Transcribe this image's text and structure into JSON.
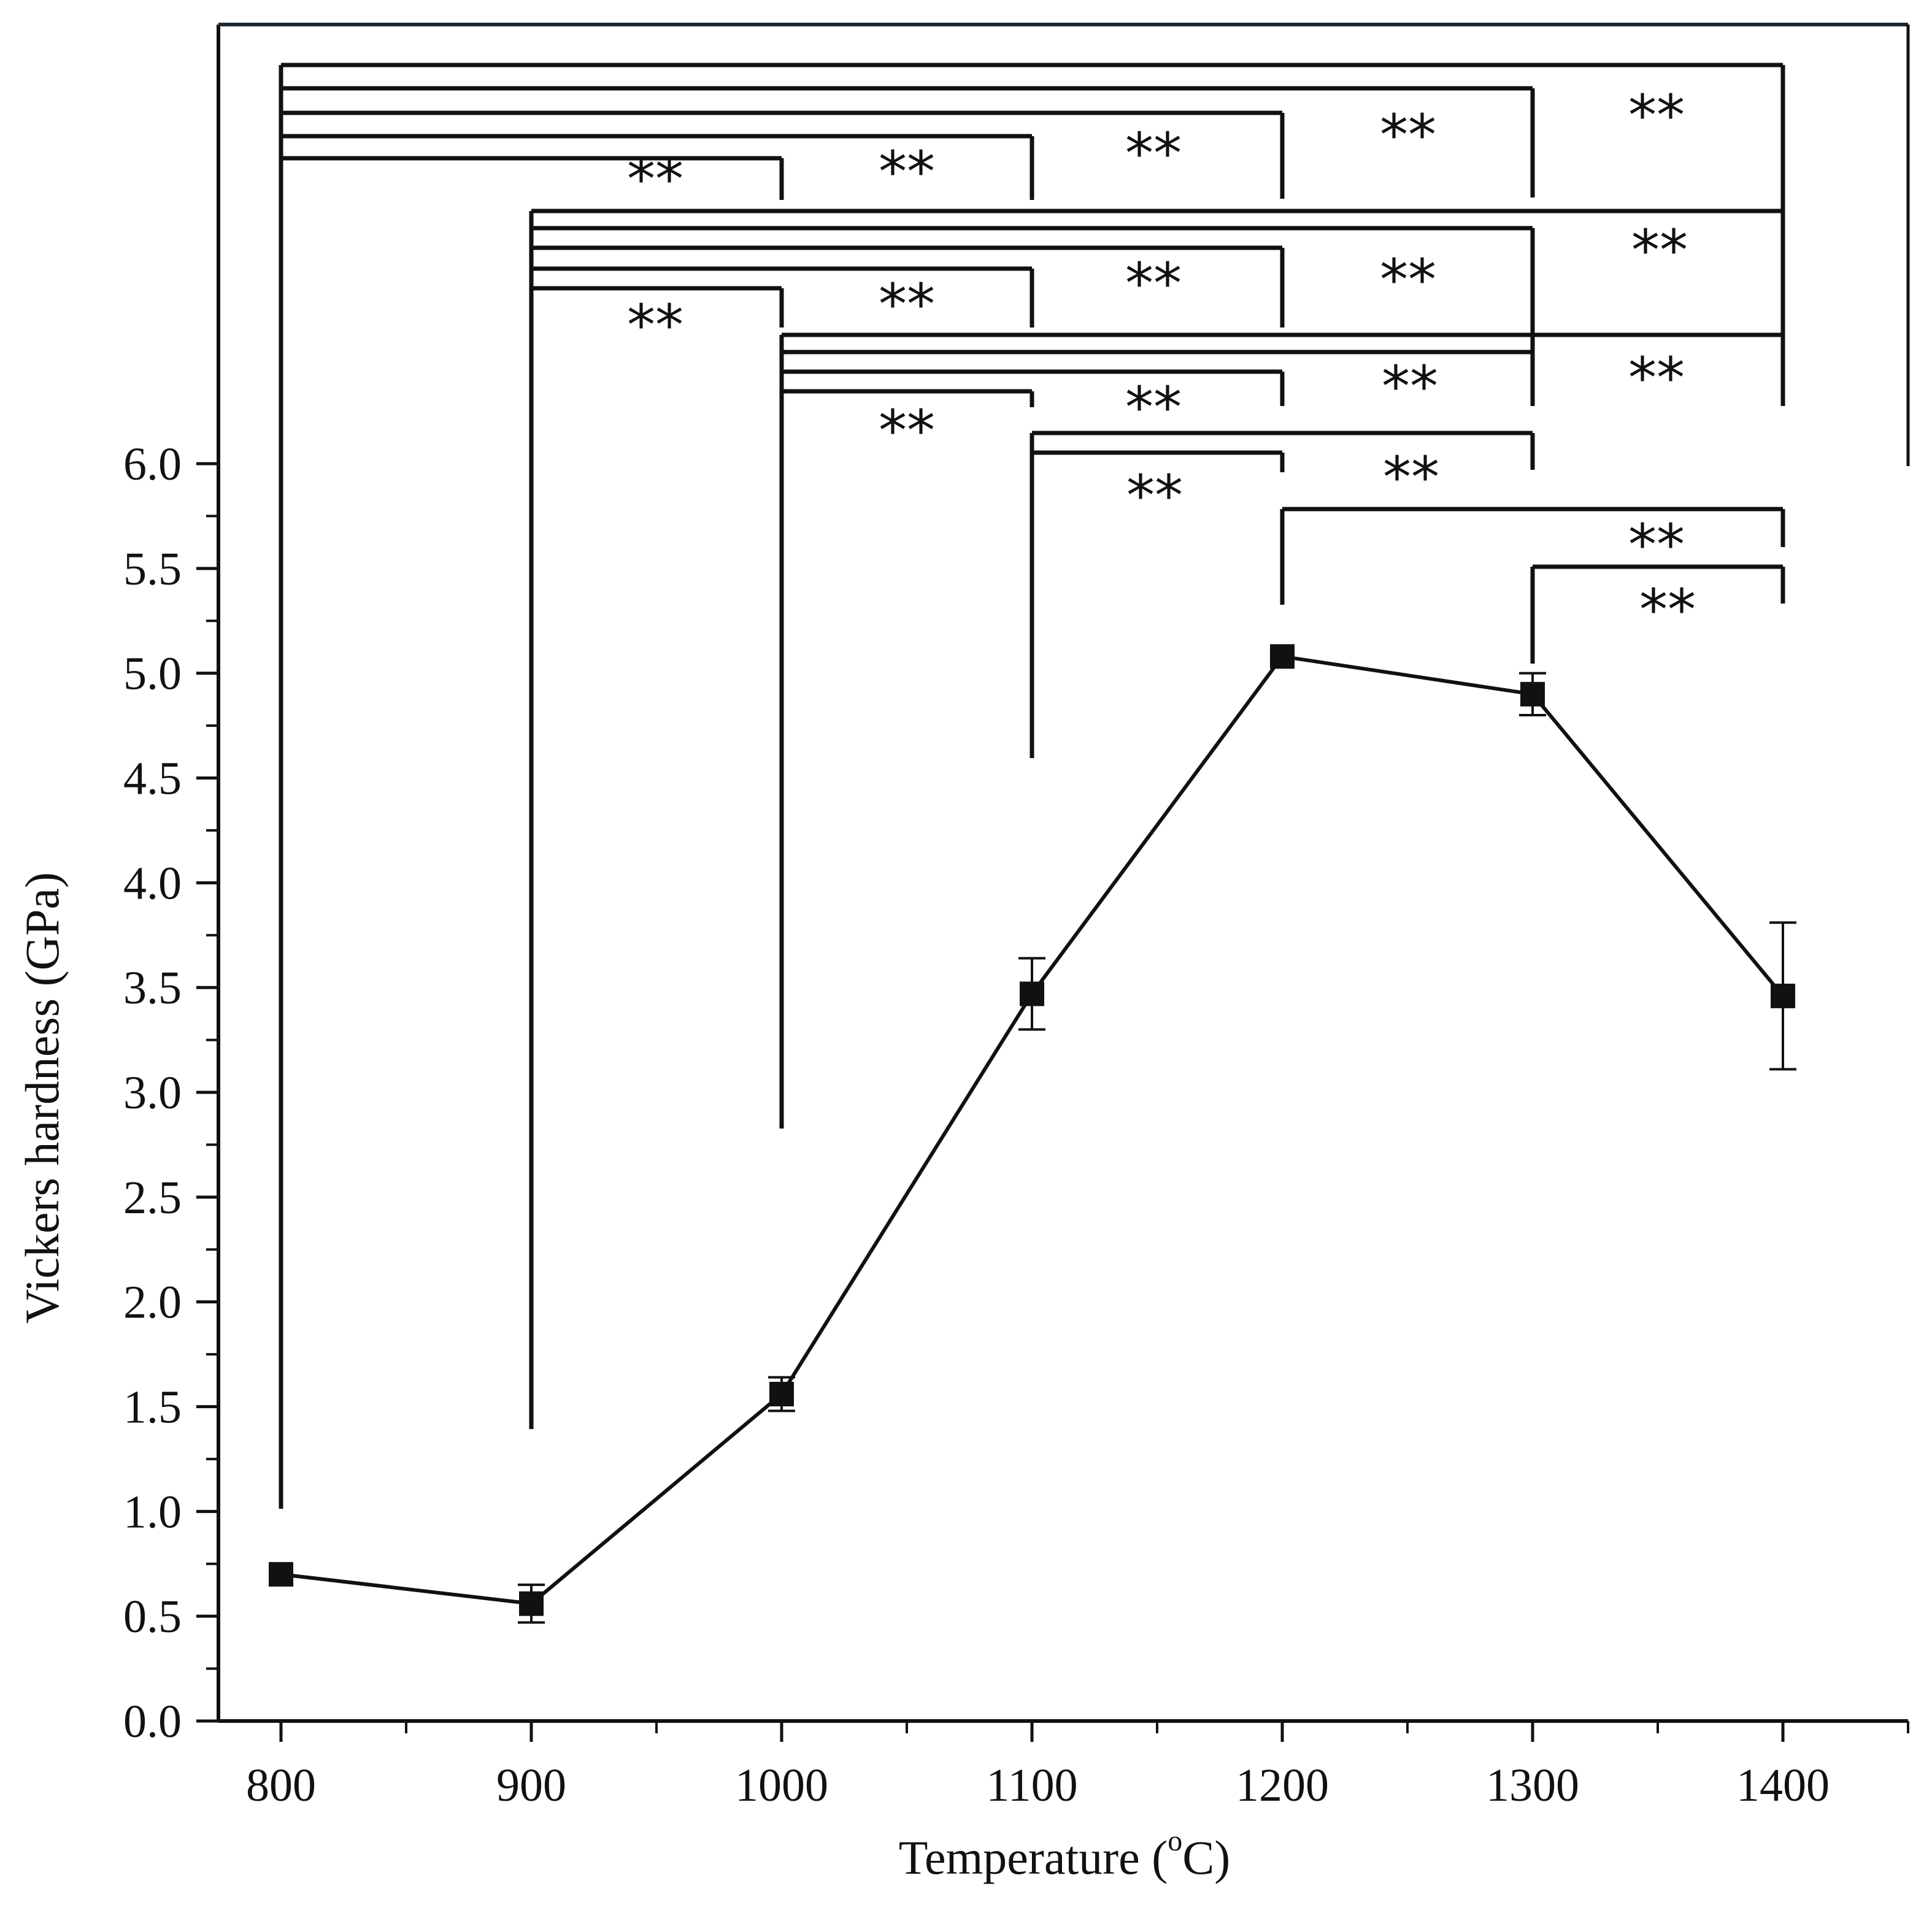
{
  "chart_data": {
    "type": "scatter",
    "title": "",
    "xlabel": "Temperature (",
    "xlabel_superscript": "o",
    "xlabel_unit": "C)",
    "ylabel": "Vickers hardness (GPa)",
    "xlim": [
      775,
      1450
    ],
    "ylim": [
      0,
      6.0
    ],
    "grid": false,
    "legend": "none",
    "x_ticks": [
      "800",
      "900",
      "1000",
      "1100",
      "1200",
      "1300",
      "1400"
    ],
    "y_ticks": [
      "0.0",
      "0.5",
      "1.0",
      "1.5",
      "2.0",
      "2.5",
      "3.0",
      "3.5",
      "4.0",
      "4.5",
      "5.0",
      "5.5",
      "6.0"
    ],
    "series": [
      {
        "marker": "square",
        "line": "solid",
        "points": [
          {
            "x": 800,
            "y": 0.7,
            "err": 0.0
          },
          {
            "x": 900,
            "y": 0.56,
            "err": 0.09
          },
          {
            "x": 1000,
            "y": 1.56,
            "err": 0.08
          },
          {
            "x": 1100,
            "y": 3.47,
            "err": 0.17
          },
          {
            "x": 1200,
            "y": 5.08,
            "err": 0.0
          },
          {
            "x": 1300,
            "y": 4.9,
            "err": 0.1
          },
          {
            "x": 1400,
            "y": 3.46,
            "err": 0.35
          }
        ]
      }
    ],
    "significance_label": "**",
    "significance_comparisons": [
      {
        "from": 800,
        "to": 1000,
        "label": "**"
      },
      {
        "from": 800,
        "to": 1100,
        "label": "**"
      },
      {
        "from": 800,
        "to": 1200,
        "label": "**"
      },
      {
        "from": 800,
        "to": 1300,
        "label": "**"
      },
      {
        "from": 800,
        "to": 1400,
        "label": "**"
      },
      {
        "from": 900,
        "to": 1000,
        "label": "**"
      },
      {
        "from": 900,
        "to": 1100,
        "label": "**"
      },
      {
        "from": 900,
        "to": 1200,
        "label": "**"
      },
      {
        "from": 900,
        "to": 1300,
        "label": "**"
      },
      {
        "from": 900,
        "to": 1400,
        "label": "**"
      },
      {
        "from": 1000,
        "to": 1100,
        "label": "**"
      },
      {
        "from": 1000,
        "to": 1200,
        "label": "**"
      },
      {
        "from": 1000,
        "to": 1300,
        "label": "**"
      },
      {
        "from": 1000,
        "to": 1400,
        "label": "**"
      },
      {
        "from": 1100,
        "to": 1200,
        "label": "**"
      },
      {
        "from": 1100,
        "to": 1300,
        "label": "**"
      },
      {
        "from": 1200,
        "to": 1400,
        "label": "**"
      },
      {
        "from": 1300,
        "to": 1400,
        "label": "**"
      }
    ]
  }
}
